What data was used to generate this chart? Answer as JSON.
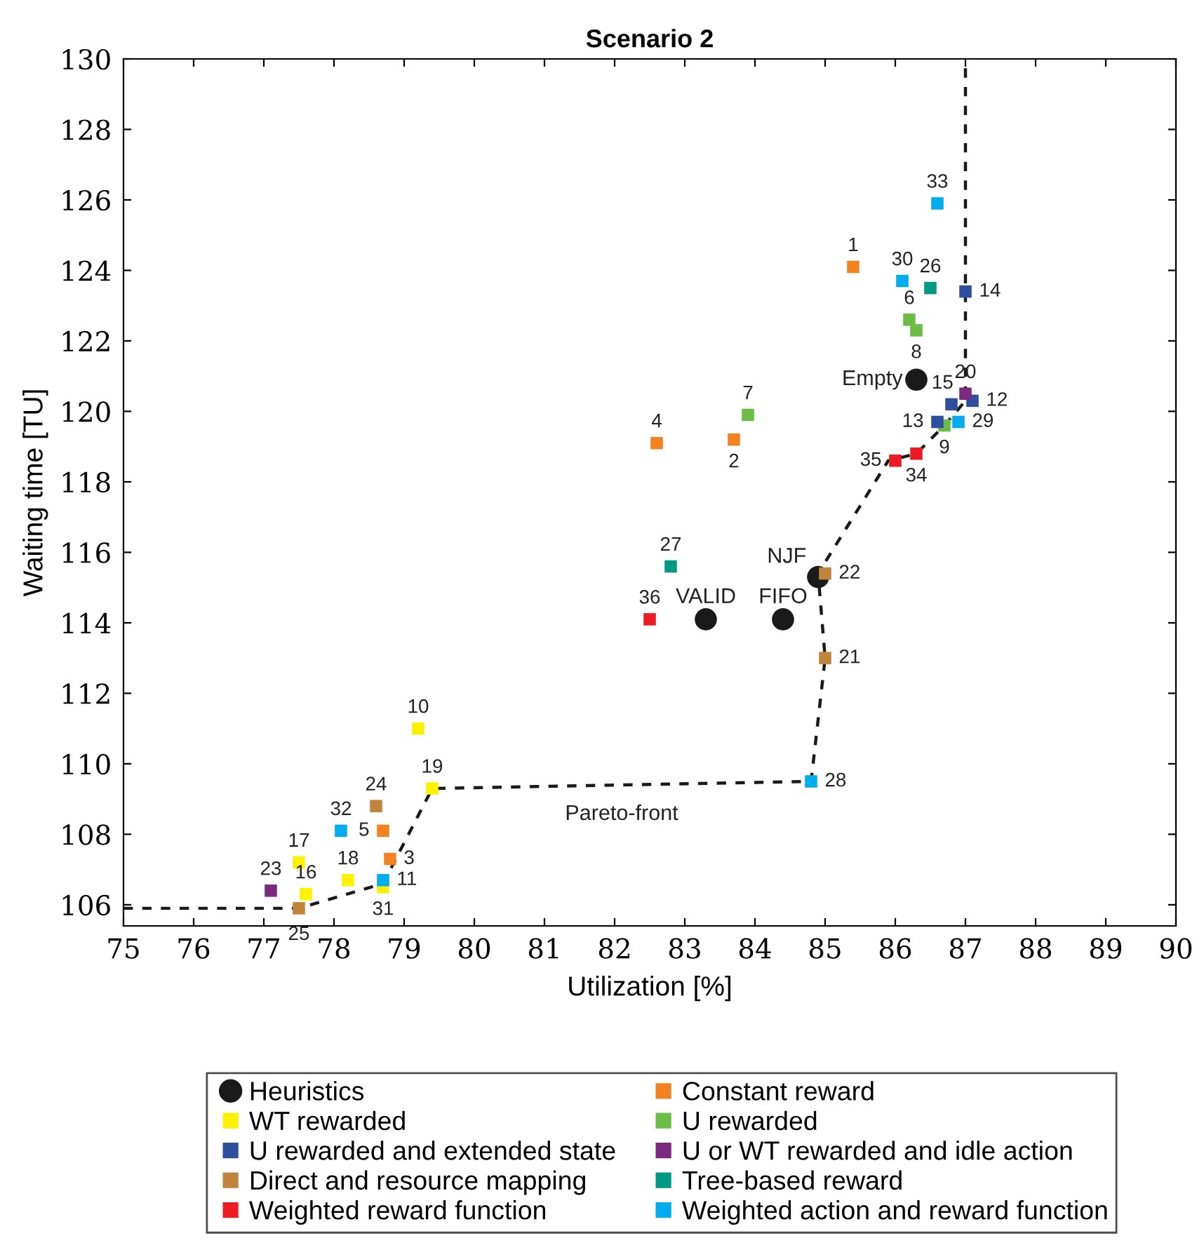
{
  "chart_data": {
    "type": "scatter",
    "title": "Scenario 2",
    "xlabel": "Utilization [%]",
    "ylabel": "Waiting time [TU]",
    "xlim": [
      75,
      90
    ],
    "xticks": [
      75,
      76,
      77,
      78,
      79,
      80,
      81,
      82,
      83,
      84,
      85,
      86,
      87,
      88,
      89,
      90
    ],
    "ylim": [
      105.4,
      130
    ],
    "yticks": [
      106,
      108,
      110,
      112,
      114,
      116,
      118,
      120,
      122,
      124,
      126,
      128,
      130
    ],
    "grid": false,
    "legend": "bottom",
    "marker": "square",
    "series": [
      {
        "name": "Heuristics",
        "color": "#1a1a1a",
        "marker": "circle",
        "x": [
          86.3,
          83.3,
          84.4,
          84.9
        ],
        "values": [
          120.9,
          114.1,
          114.1,
          115.3
        ]
      },
      {
        "name": "Constant reward",
        "color": "#f58220",
        "x": [
          85.4,
          83.7,
          78.8,
          82.6,
          78.7
        ],
        "values": [
          124.1,
          119.2,
          107.3,
          119.1,
          108.1
        ]
      },
      {
        "name": "WT rewarded",
        "color": "#fff200",
        "x": [
          79.2,
          77.6,
          77.5,
          78.2,
          79.4,
          78.7
        ],
        "values": [
          111.0,
          106.3,
          107.2,
          106.7,
          109.3,
          106.5
        ]
      },
      {
        "name": "U rewarded",
        "color": "#6cbd45",
        "x": [
          86.2,
          83.9,
          86.3,
          86.7
        ],
        "values": [
          122.6,
          119.9,
          122.3,
          119.6
        ]
      },
      {
        "name": "U rewarded and extended state",
        "color": "#2e4f9e",
        "x": [
          87.1,
          86.6,
          87.0,
          86.8
        ],
        "values": [
          120.3,
          119.7,
          123.4,
          120.2
        ]
      },
      {
        "name": "U or WT rewarded and idle action",
        "color": "#7b2a7e",
        "x": [
          87.0,
          77.1
        ],
        "values": [
          120.5,
          106.4
        ]
      },
      {
        "name": "Direct and resource mapping",
        "color": "#c0843d",
        "x": [
          85.0,
          85.0,
          78.6,
          77.5
        ],
        "values": [
          113.0,
          115.4,
          108.8,
          105.9
        ]
      },
      {
        "name": "Tree-based reward",
        "color": "#009a80",
        "x": [
          86.5,
          82.8
        ],
        "values": [
          123.5,
          115.6
        ]
      },
      {
        "name": "Weighted reward function",
        "color": "#ed1c24",
        "x": [
          86.3,
          86.0,
          82.5
        ],
        "values": [
          118.8,
          118.6,
          114.1
        ]
      },
      {
        "name": "Weighted action and reward function",
        "color": "#00aeef",
        "x": [
          78.7,
          84.8,
          86.9,
          86.1,
          78.1,
          86.6
        ],
        "values": [
          106.7,
          109.5,
          119.7,
          123.7,
          108.1,
          125.9
        ]
      },
      {
        "name": "Pareto-front",
        "type": "line",
        "color": "#1a1a1a",
        "line_style": "dashed",
        "marker": "none",
        "x": [
          75,
          77.5,
          78.7,
          79.4,
          84.8,
          85.0,
          84.9,
          85.9,
          86.3,
          86.7,
          87.0,
          87.0
        ],
        "values": [
          105.9,
          105.9,
          106.6,
          109.3,
          109.5,
          113.0,
          115.4,
          118.6,
          118.8,
          119.6,
          120.3,
          130
        ]
      }
    ],
    "annotations": [
      {
        "text": "Empty",
        "x": 86.3,
        "y": 120.9
      },
      {
        "text": "VALID",
        "x": 83.3,
        "y": 114.1
      },
      {
        "text": "FIFO",
        "x": 84.4,
        "y": 114.1
      },
      {
        "text": "NJF",
        "x": 84.9,
        "y": 115.3
      },
      {
        "text": "1",
        "x": 85.4,
        "y": 124.1
      },
      {
        "text": "2",
        "x": 83.7,
        "y": 119.2
      },
      {
        "text": "3",
        "x": 78.8,
        "y": 107.3
      },
      {
        "text": "4",
        "x": 82.6,
        "y": 119.1
      },
      {
        "text": "5",
        "x": 78.7,
        "y": 108.1
      },
      {
        "text": "6",
        "x": 86.2,
        "y": 122.6
      },
      {
        "text": "7",
        "x": 83.9,
        "y": 119.9
      },
      {
        "text": "8",
        "x": 86.3,
        "y": 122.3
      },
      {
        "text": "9",
        "x": 86.7,
        "y": 119.6
      },
      {
        "text": "10",
        "x": 79.2,
        "y": 111.0
      },
      {
        "text": "11",
        "x": 78.7,
        "y": 106.7
      },
      {
        "text": "12",
        "x": 87.1,
        "y": 120.3
      },
      {
        "text": "13",
        "x": 86.6,
        "y": 119.7
      },
      {
        "text": "14",
        "x": 87.0,
        "y": 123.4
      },
      {
        "text": "15",
        "x": 86.8,
        "y": 120.2
      },
      {
        "text": "16",
        "x": 77.6,
        "y": 106.3
      },
      {
        "text": "17",
        "x": 77.5,
        "y": 107.2
      },
      {
        "text": "18",
        "x": 78.2,
        "y": 106.7
      },
      {
        "text": "19",
        "x": 79.4,
        "y": 109.3
      },
      {
        "text": "20",
        "x": 87.0,
        "y": 120.5
      },
      {
        "text": "21",
        "x": 85.0,
        "y": 113.0
      },
      {
        "text": "22",
        "x": 85.0,
        "y": 115.4
      },
      {
        "text": "23",
        "x": 77.1,
        "y": 106.4
      },
      {
        "text": "24",
        "x": 78.6,
        "y": 108.8
      },
      {
        "text": "25",
        "x": 77.5,
        "y": 105.9
      },
      {
        "text": "26",
        "x": 86.5,
        "y": 123.5
      },
      {
        "text": "27",
        "x": 82.8,
        "y": 115.6
      },
      {
        "text": "28",
        "x": 84.8,
        "y": 109.5
      },
      {
        "text": "29",
        "x": 86.9,
        "y": 119.7
      },
      {
        "text": "30",
        "x": 86.1,
        "y": 123.7
      },
      {
        "text": "31",
        "x": 78.7,
        "y": 106.5
      },
      {
        "text": "32",
        "x": 78.1,
        "y": 108.1
      },
      {
        "text": "33",
        "x": 86.6,
        "y": 125.9
      },
      {
        "text": "34",
        "x": 86.3,
        "y": 118.8
      },
      {
        "text": "35",
        "x": 86.0,
        "y": 118.6
      },
      {
        "text": "36",
        "x": 82.5,
        "y": 114.1
      }
    ]
  }
}
